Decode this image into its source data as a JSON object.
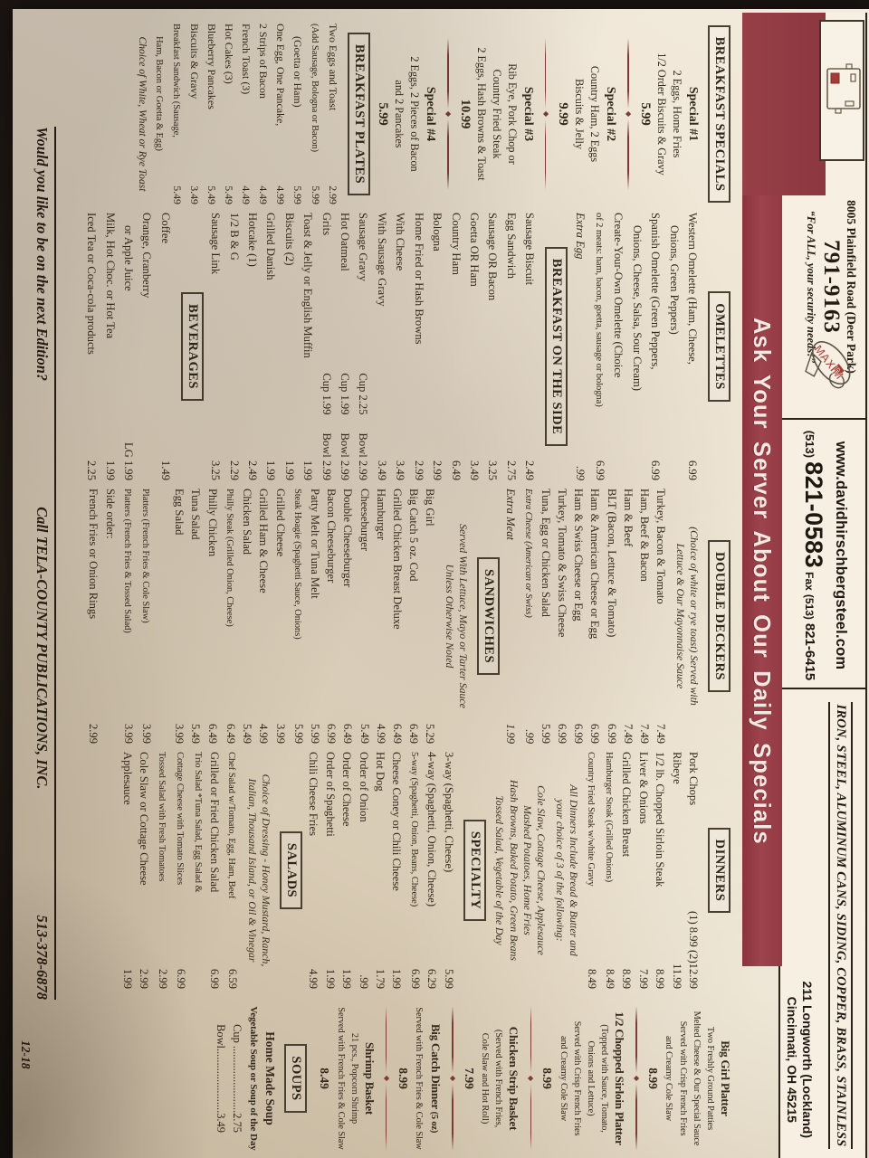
{
  "header": {
    "ad1": {
      "address": "8005 Plainfield Road (Deer Park)",
      "phone": "791-9163",
      "tagline": "“For ALL, your security needs!”",
      "logo_text": "MAXIM"
    },
    "ad2": {
      "site": "www.davidhirschbergsteel.com",
      "area": "(513)",
      "phone": "821-0583",
      "fax_label": "Fax",
      "fax_area": "(513)",
      "fax": "821-6415"
    },
    "ad3": {
      "products": "IRON, STEEL, ALUMINUM CANS, SIDING, COPPER, BRASS, STAINLESS",
      "addr1": "211 Longworth (Lockland)",
      "addr2": "Cincinnati, OH 45215"
    },
    "icons": {
      "sketch": "security-door-device-sketch-icon",
      "maxim": "maxim-tape-gun-logo-icon"
    }
  },
  "banner": {
    "text": "Ask Your Server About Our Daily Specials",
    "color": "#963f47"
  },
  "footer": {
    "q": "Would you like to be on the next Edition?",
    "c": "Call TELA-COUNTY PUBLICATIONS, INC.",
    "ph": "513-378-6878",
    "edition": "12-18"
  },
  "columns": [
    [
      {
        "t": "box",
        "x": "BREAKFAST SPECIALS"
      },
      {
        "t": "sp",
        "x": "Special #1",
        "l": [
          "2 Eggs, Home Fries",
          "1/2 Order Biscuits & Gravy"
        ],
        "p": "5.99"
      },
      {
        "t": "dv"
      },
      {
        "t": "sp",
        "x": "Special #2",
        "l": [
          "Country Ham, 2 Eggs",
          "Biscuits & Jelly"
        ],
        "p": "9.99"
      },
      {
        "t": "dv"
      },
      {
        "t": "sp",
        "x": "Special #3",
        "l": [
          "Rib Eye, Pork Chop or",
          "Country Fried Steak",
          "2 Eggs, Hash Browns & Toast"
        ],
        "p": "10.99"
      },
      {
        "t": "dv"
      },
      {
        "t": "sp",
        "x": "Special #4",
        "l": [
          "2 Eggs, 2 Pieces of Bacon",
          "and 2 Pancakes"
        ],
        "p": "5.99"
      },
      {
        "t": "box",
        "x": "BREAKFAST PLATES"
      },
      {
        "t": "it",
        "n": "Two Eggs and Toast",
        "p": "2.99"
      },
      {
        "t": "it",
        "n": "(Add Sausage, Bologna or Bacon)",
        "p": "5.99",
        "s": 1
      },
      {
        "t": "it",
        "n": "(Goetta or Ham)",
        "p": "5.99",
        "d": 1
      },
      {
        "t": "it",
        "n": "One Egg, One Pancake,",
        "p": "4.99"
      },
      {
        "t": "it",
        "n": "2 Strips of Bacon",
        "p": "4.49"
      },
      {
        "t": "it",
        "n": "French Toast (3)",
        "p": "4.49"
      },
      {
        "t": "it",
        "n": "Hot Cakes (3)",
        "p": "5.49"
      },
      {
        "t": "it",
        "n": "Blueberry Pancakes",
        "p": "5.49"
      },
      {
        "t": "it",
        "n": "Biscuits & Gravy",
        "p": "3.49"
      },
      {
        "t": "it",
        "n": "Breakfast Sandwich (Sausage,",
        "p": "5.49",
        "s": 1
      },
      {
        "t": "it",
        "n": "Ham, Bacon or Goetta & Egg)",
        "d": 1,
        "s": 1
      },
      {
        "t": "ct",
        "x": "Choice of White, Wheat or Rye Toast",
        "i": 1
      }
    ],
    [
      {
        "t": "box",
        "x": "OMELETTES"
      },
      {
        "t": "it",
        "n": "Western Omelette (Ham, Cheese,",
        "p": "6.99"
      },
      {
        "t": "it",
        "n": "Onions, Green Peppers)",
        "d": 1
      },
      {
        "t": "it",
        "n": "Spanish Omelette (Green Peppers,",
        "p": "6.99"
      },
      {
        "t": "it",
        "n": "Onions, Cheese, Salsa, Sour Cream)",
        "d": 1
      },
      {
        "t": "it",
        "n": "Create-Your-Own Omelette (Choice"
      },
      {
        "t": "it",
        "n": "of 2 meats: ham, bacon, goetta, sausage or bologna)",
        "p": "6.99",
        "s": 1
      },
      {
        "t": "it",
        "n": "Extra Egg",
        "p": ".99",
        "i": 1
      },
      {
        "t": "box",
        "x": "BREAKFAST ON THE SIDE"
      },
      {
        "t": "it",
        "n": "Sausage Biscuit",
        "p": "2.49"
      },
      {
        "t": "it",
        "n": "Egg Sandwich",
        "p": "2.75"
      },
      {
        "t": "it",
        "n": "Sausage OR Bacon",
        "p": "3.25"
      },
      {
        "t": "it",
        "n": "Goetta OR Ham",
        "p": "3.49"
      },
      {
        "t": "it",
        "n": "Country Ham",
        "p": "6.49"
      },
      {
        "t": "it",
        "n": "Bologna",
        "p": "2.99"
      },
      {
        "t": "it",
        "n": "Home Fried or Hash Browns",
        "p": "2.99"
      },
      {
        "t": "it",
        "n": "With Cheese",
        "p": "3.49"
      },
      {
        "t": "it",
        "n": "With Sausage Gravy",
        "p": "3.49"
      },
      {
        "t": "it",
        "n": "Sausage Gravy",
        "m": "Cup 2.25",
        "p": "Bowl 2.99"
      },
      {
        "t": "it",
        "n": "Hot Oatmeal",
        "m": "Cup 1.99",
        "p": "Bowl 2.99"
      },
      {
        "t": "it",
        "n": "Grits",
        "m": "Cup 1.99",
        "p": "Bowl 2.99"
      },
      {
        "t": "it",
        "n": "Toast & Jelly or English Muffin",
        "p": "1.99"
      },
      {
        "t": "it",
        "n": "Biscuits (2)",
        "p": "1.99"
      },
      {
        "t": "it",
        "n": "Grilled Danish",
        "p": "1.99"
      },
      {
        "t": "it",
        "n": "Hotcake (1)",
        "p": "2.49"
      },
      {
        "t": "it",
        "n": "1/2 B & G",
        "p": "2.29"
      },
      {
        "t": "it",
        "n": "Sausage Link",
        "p": "3.25"
      },
      {
        "t": "box",
        "x": "BEVERAGES"
      },
      {
        "t": "it",
        "n": "Coffee",
        "p": "1.49"
      },
      {
        "t": "it",
        "n": "Orange, Cranberry"
      },
      {
        "t": "it",
        "n": "or Apple Juice",
        "p": "LG 1.99",
        "d": 1
      },
      {
        "t": "it",
        "n": "Milk, Hot Choc. or Hot Tea",
        "p": "1.99"
      },
      {
        "t": "it",
        "n": "Iced Tea or Coca-cola products",
        "p": "2.25"
      }
    ],
    [
      {
        "t": "box",
        "x": "DOUBLE DECKERS"
      },
      {
        "t": "nt",
        "l": [
          "(Choice of white or rye toast) Served with",
          "Lettuce & Our Mayonnaise Sauce"
        ]
      },
      {
        "t": "it",
        "n": "Turkey, Bacon & Tomato",
        "p": "7.49"
      },
      {
        "t": "it",
        "n": "Ham, Beef & Bacon",
        "p": "7.49"
      },
      {
        "t": "it",
        "n": "Ham & Beef",
        "p": "7.49"
      },
      {
        "t": "it",
        "n": "BLT (Bacon, Lettuce & Tomato)",
        "p": "6.99"
      },
      {
        "t": "it",
        "n": "Ham & American Cheese or Egg",
        "p": "6.99"
      },
      {
        "t": "it",
        "n": "Ham & Swiss Cheese or Egg",
        "p": "6.99"
      },
      {
        "t": "it",
        "n": "Turkey, Tomato & Swiss Cheese",
        "p": "6.99"
      },
      {
        "t": "it",
        "n": "Tuna, Egg or Chicken Salad",
        "p": "5.99"
      },
      {
        "t": "it",
        "n": "Extra Cheese (American or Swiss)",
        "p": ".99",
        "i": 1,
        "s": 1
      },
      {
        "t": "it",
        "n": "Extra Meat",
        "p": "1.99",
        "i": 1
      },
      {
        "t": "box",
        "x": "SANDWICHES"
      },
      {
        "t": "nt",
        "l": [
          "Served With Lettuce, Mayo or Tarter Sauce",
          "Unless Otherwise Noted"
        ]
      },
      {
        "t": "it",
        "n": "Big Girl",
        "p": "5.29"
      },
      {
        "t": "it",
        "n": "Big Catch 5 oz. Cod",
        "p": "6.49"
      },
      {
        "t": "it",
        "n": "Grilled Chicken Breast Deluxe",
        "p": "6.49"
      },
      {
        "t": "it",
        "n": "Hamburger",
        "p": "4.99"
      },
      {
        "t": "it",
        "n": "Cheeseburger",
        "p": "5.49"
      },
      {
        "t": "it",
        "n": "Double Cheeseburger",
        "p": "6.49"
      },
      {
        "t": "it",
        "n": "Bacon Cheeseburger",
        "p": "6.99"
      },
      {
        "t": "it",
        "n": "Patty Melt or Tuna Melt",
        "p": "5.99"
      },
      {
        "t": "it",
        "n": "Steak Hoagie (Spaghetti Sauce, Onions)",
        "p": "5.99",
        "s": 1
      },
      {
        "t": "it",
        "n": "Grilled Cheese",
        "p": "3.99"
      },
      {
        "t": "it",
        "n": "Grilled Ham & Cheese",
        "p": "4.99"
      },
      {
        "t": "it",
        "n": "Chicken Salad",
        "p": "5.49"
      },
      {
        "t": "it",
        "n": "Philly Steak (Grilled Onion, Cheese)",
        "p": "6.49",
        "s": 1
      },
      {
        "t": "it",
        "n": "Philly Chicken",
        "p": "6.49"
      },
      {
        "t": "it",
        "n": "Tuna Salad",
        "p": "5.49"
      },
      {
        "t": "it",
        "n": "Egg Salad",
        "p": "3.99"
      },
      {
        "t": "gp",
        "h": 18
      },
      {
        "t": "it",
        "n": "Platters (French Fries & Cole Slaw)",
        "p": "3.99",
        "s": 1
      },
      {
        "t": "it",
        "n": "Platters (French Fries & Tossed Salad)",
        "p": "3.99",
        "s": 1
      },
      {
        "t": "it",
        "n": "Side order:"
      },
      {
        "t": "it",
        "n": "French Fries or Onion Rings",
        "p": "2.99"
      }
    ],
    [
      {
        "t": "box",
        "x": "DINNERS"
      },
      {
        "t": "it",
        "n": "Pork Chops",
        "p": "(1) 8.99 (2)12.99"
      },
      {
        "t": "it",
        "n": "Ribeye",
        "p": "11.99"
      },
      {
        "t": "it",
        "n": "1/2 lb. Chopped Sirloin Steak",
        "p": "8.99"
      },
      {
        "t": "it",
        "n": "Liver & Onions",
        "p": "7.99"
      },
      {
        "t": "it",
        "n": "Grilled Chicken Breast",
        "p": "8.99"
      },
      {
        "t": "it",
        "n": "Hamburger Steak (Grilled Onions)",
        "p": "8.49",
        "s": 1
      },
      {
        "t": "it",
        "n": "Country Fried Steak w/white Gravy",
        "p": "8.49",
        "s": 1
      },
      {
        "t": "nt",
        "l": [
          "All Dinners Include Bread & Butter and",
          "your choice of 3 of the following:"
        ]
      },
      {
        "t": "nt",
        "l": [
          "Cole Slaw, Cottage Cheese, Applesauce",
          "Mashed Potatoes, Home Fries",
          "Hash Browns, Baked Potato, Green Beans",
          "Tossed Salad, Vegetable of the Day"
        ]
      },
      {
        "t": "box",
        "x": "SPECIALTY"
      },
      {
        "t": "it",
        "n": "3-way (Spaghetti, Cheese)",
        "p": "5.99"
      },
      {
        "t": "it",
        "n": "4-way (Spaghetti, Onion, Cheese)",
        "p": "6.29"
      },
      {
        "t": "it",
        "n": "5-way (Spaghetti, Onion, Beans, Cheese)",
        "p": "6.99",
        "s": 1
      },
      {
        "t": "it",
        "n": "Cheese Coney or Chili Cheese",
        "p": "1.99"
      },
      {
        "t": "it",
        "n": "Hot Dog",
        "p": "1.79"
      },
      {
        "t": "it",
        "n": "Order of Onion",
        "p": ".99"
      },
      {
        "t": "it",
        "n": "Order of Cheese",
        "p": "1.99"
      },
      {
        "t": "it",
        "n": "Order of Spaghetti",
        "p": "1.99"
      },
      {
        "t": "it",
        "n": "Chili Cheese Fries",
        "p": "4.99"
      },
      {
        "t": "box",
        "x": "SALADS"
      },
      {
        "t": "nt",
        "l": [
          "Choice of Dressing - Honey Mustard, Ranch,",
          "Italian, Thousand Island, or Oil & Vinegar"
        ]
      },
      {
        "t": "it",
        "n": "Chef Salad w/Tomato, Egg, Ham, Beef",
        "p": "6.59",
        "s": 1
      },
      {
        "t": "it",
        "n": "Grilled or Fried Chicken Salad",
        "p": "6.99"
      },
      {
        "t": "it",
        "n": "Trio Salad *Tuna Salad, Egg Salad &",
        "s": 1
      },
      {
        "t": "it",
        "n": "Cottage Cheese with Tomato Slices",
        "p": "6.99",
        "s": 1
      },
      {
        "t": "it",
        "n": "Tossed Salad with Fresh Tomatoes",
        "p": "2.99",
        "s": 1
      },
      {
        "t": "it",
        "n": "Cole Slaw or Cottage Cheese",
        "p": "2.99"
      },
      {
        "t": "it",
        "n": "Applesauce",
        "p": "1.99"
      }
    ],
    [
      {
        "t": "pl",
        "x": "Big Girl Platter",
        "l": [
          "Two Freshly Ground Patties",
          "Melted Cheese & Our Special Sauce",
          "Served with Crisp French Fries",
          "and Creamy Cole Slaw"
        ],
        "p": "8.99"
      },
      {
        "t": "dv"
      },
      {
        "t": "pl",
        "x": "1/2 Chopped Sirloin Platter",
        "l": [
          "(Topped with Sauce, Tomato,",
          "Onions and Lettuce)",
          "Served with Crisp French Fries",
          "and Creamy Cole Slaw"
        ],
        "p": "8.99"
      },
      {
        "t": "dv"
      },
      {
        "t": "pl",
        "x": "Chicken Strip Basket",
        "l": [
          "(Served with French Fries,",
          "Cole Slaw and Hot Roll)"
        ],
        "p": "7.99"
      },
      {
        "t": "dv"
      },
      {
        "t": "pl",
        "x": "Big Catch Dinner",
        "sx": "(5 oz)",
        "l": [
          "Served with French Fries & Cole Slaw"
        ],
        "p": "8.99"
      },
      {
        "t": "dv"
      },
      {
        "t": "pl",
        "x": "Shrimp Basket",
        "l": [
          "21 pcs., Popcorn Shrimp",
          "Served with French Fries & Cole Slaw"
        ],
        "p": "8.49"
      },
      {
        "t": "box",
        "x": "SOUPS"
      },
      {
        "t": "ct",
        "x": "Home Made Soup",
        "b": 1
      },
      {
        "t": "ct",
        "x": "Vegetable Soup or Soup of the Day",
        "b": 1,
        "s": 1
      },
      {
        "t": "ct",
        "x": "Cup ........................2.75"
      },
      {
        "t": "ct",
        "x": "Bowl.......................3.49"
      }
    ]
  ]
}
